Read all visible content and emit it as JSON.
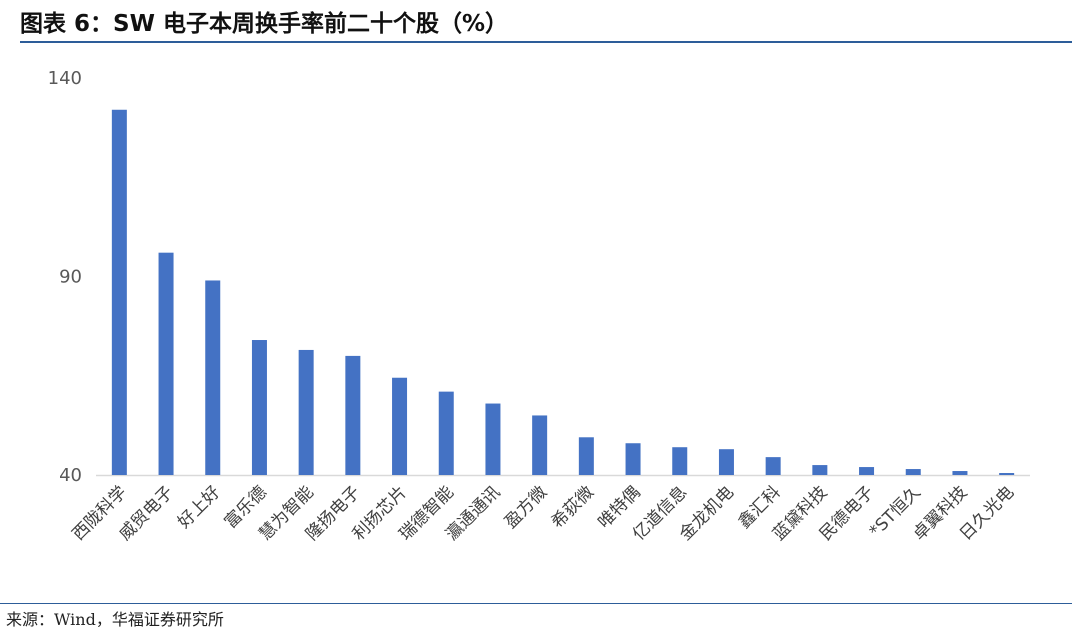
{
  "header": {
    "title": "图表 6：SW 电子本周换手率前二十个股（%）"
  },
  "footer": {
    "source": "来源：Wind，华福证券研究所"
  },
  "colors": {
    "bar": "#4472c4",
    "title_rule": "#2d5d99",
    "axis": "#d9d9d9",
    "tick_text": "#595959",
    "label_text": "#404040"
  },
  "chart_data": {
    "type": "bar",
    "title": "图表 6：SW 电子本周换手率前二十个股（%）",
    "xlabel": "",
    "ylabel": "",
    "ylim": [
      40,
      140
    ],
    "yticks": [
      40,
      90,
      140
    ],
    "grid": false,
    "legend": "none",
    "categories": [
      "西陇科学",
      "威贸电子",
      "好上好",
      "富乐德",
      "慧为智能",
      "隆扬电子",
      "利扬芯片",
      "瑞德智能",
      "瀛通通讯",
      "盈方微",
      "希荻微",
      "唯特偶",
      "亿道信息",
      "金龙机电",
      "鑫汇科",
      "蓝黛科技",
      "民德电子",
      "*ST恒久",
      "卓翼科技",
      "日久光电"
    ],
    "values": [
      132,
      96,
      89,
      74,
      71.5,
      70,
      64.5,
      61,
      58,
      55,
      49.5,
      48,
      47,
      46.5,
      44.5,
      42.5,
      42,
      41.5,
      41,
      40.5
    ]
  }
}
